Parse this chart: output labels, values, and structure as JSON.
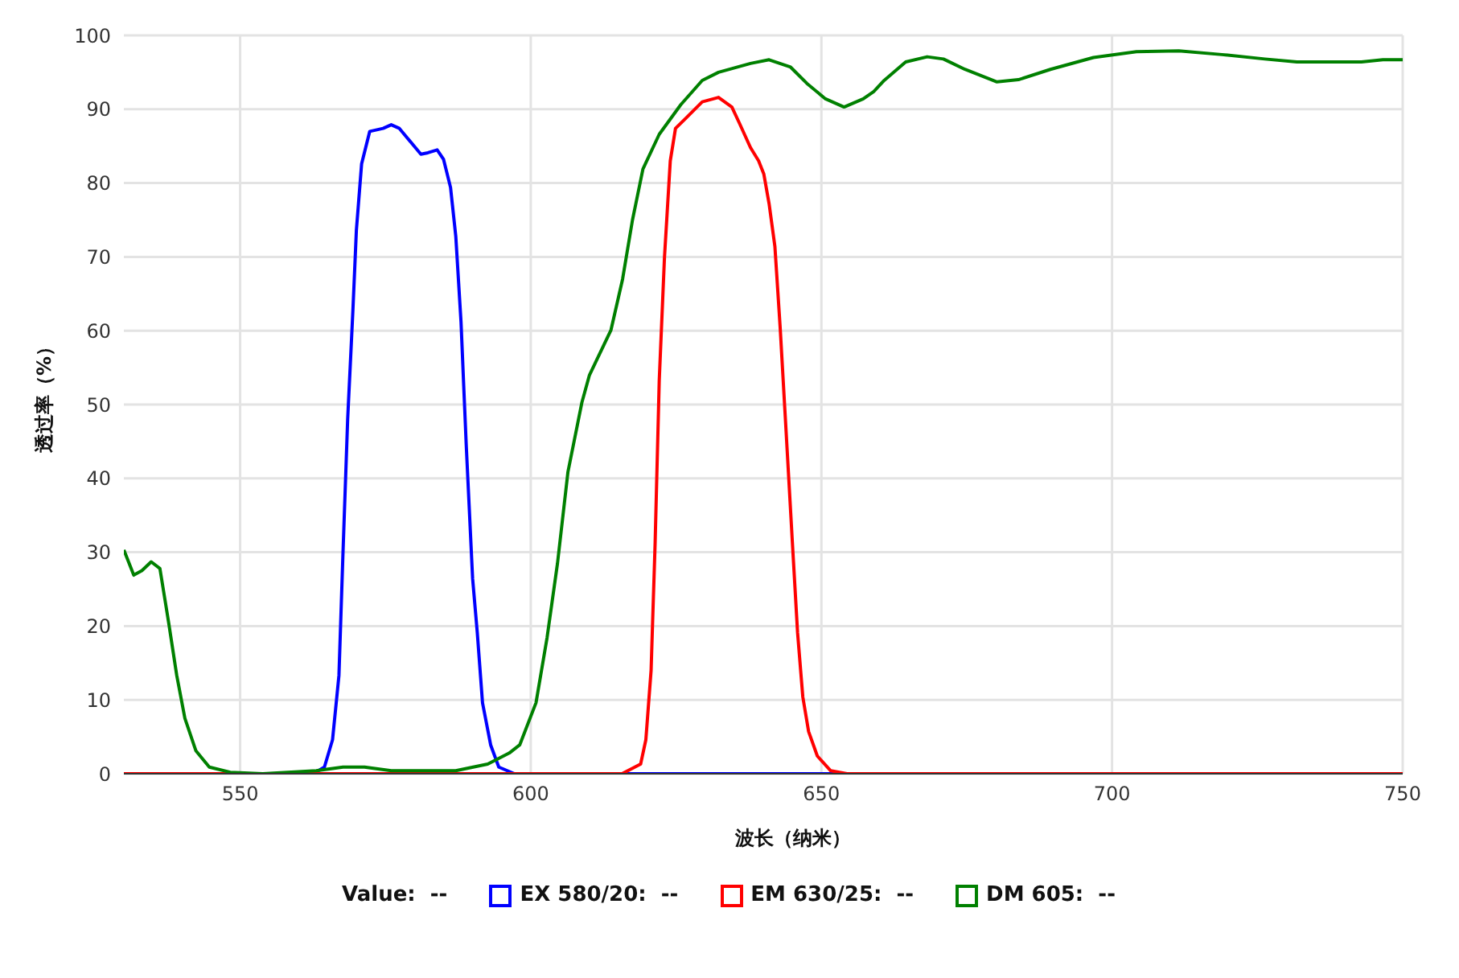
{
  "chart_data": {
    "type": "line",
    "xlabel": "波长（纳米）",
    "ylabel": "透过率（%）",
    "xlim": [
      530,
      750
    ],
    "xticks": [
      550,
      600,
      650,
      700,
      750
    ],
    "ylim": [
      0,
      100
    ],
    "yticks": [
      0,
      10,
      20,
      30,
      40,
      50,
      60,
      70,
      80,
      90,
      100
    ],
    "grid": true,
    "legend": "bottom",
    "marker": "none",
    "line_style": "solid",
    "annotations": [
      "Value:  --"
    ],
    "series": [
      {
        "name": "EX 580/20:  --",
        "color": "#0000ff",
        "x": [
          530,
          555,
          562.6,
          564.5,
          565.9,
          567.0,
          567.7,
          568.5,
          569.4,
          570.0,
          570.9,
          572.3,
          574.6,
          576.0,
          577.4,
          581.1,
          582.3,
          583.9,
          585.0,
          586.2,
          587.1,
          588.0,
          588.9,
          590.0,
          590.8,
          591.7,
          593.1,
          594.5,
          597.2,
          750
        ],
        "values": [
          0,
          0,
          0,
          0.9,
          4.6,
          13.3,
          30,
          48,
          62.7,
          73.6,
          82.6,
          87.0,
          87.4,
          87.9,
          87.4,
          83.9,
          84.1,
          84.5,
          83.2,
          79.4,
          72.8,
          61.2,
          44.5,
          26.4,
          19.1,
          9.6,
          3.9,
          0.9,
          0,
          0
        ]
      },
      {
        "name": "EM 630/25:  --",
        "color": "#ff0000",
        "x": [
          530,
          615.7,
          618.9,
          619.8,
          620.7,
          621.4,
          622.1,
          623.0,
          624.0,
          624.9,
          626.7,
          629.5,
          632.3,
          634.6,
          635.9,
          637.8,
          639.2,
          640.1,
          641.0,
          642.0,
          642.9,
          643.8,
          645.0,
          645.9,
          646.8,
          647.8,
          649.3,
          651.6,
          654.4,
          750
        ],
        "values": [
          0,
          0,
          1.3,
          4.6,
          14.0,
          31.4,
          53.2,
          69.9,
          83.0,
          87.4,
          88.8,
          91.0,
          91.6,
          90.3,
          88.1,
          84.8,
          83.0,
          81.2,
          77.2,
          71.4,
          60.5,
          48.1,
          31.4,
          19.1,
          10.4,
          5.7,
          2.4,
          0.4,
          0,
          0
        ]
      },
      {
        "name": "DM 605:  --",
        "color": "#008000",
        "x": [
          530,
          531.7,
          533.1,
          534.7,
          536.2,
          537.7,
          539.1,
          540.5,
          542.4,
          544.7,
          548.3,
          553.9,
          563.1,
          567.7,
          571.4,
          576.0,
          587.1,
          592.6,
          596.3,
          598.1,
          600.9,
          602.8,
          604.6,
          606.4,
          608.8,
          610.1,
          613.8,
          615.8,
          617.5,
          619.3,
          622.1,
          625.8,
          629.5,
          632.3,
          637.8,
          641.0,
          644.7,
          647.5,
          650.7,
          653.9,
          657.2,
          659.0,
          660.8,
          664.5,
          668.2,
          671.0,
          674.7,
          680.2,
          683.9,
          689.4,
          696.8,
          704.2,
          711.5,
          718.9,
          726.3,
          731.8,
          742.9,
          746.6,
          750
        ],
        "values": [
          30.3,
          26.9,
          27.5,
          28.7,
          27.8,
          20.5,
          13.3,
          7.5,
          3.1,
          0.9,
          0.2,
          0,
          0.4,
          0.9,
          0.9,
          0.4,
          0.4,
          1.3,
          2.8,
          3.9,
          9.6,
          18.4,
          28.5,
          40.9,
          50.3,
          54.0,
          60.1,
          67.0,
          75.0,
          81.9,
          86.6,
          90.6,
          93.9,
          95.0,
          96.2,
          96.7,
          95.7,
          93.5,
          91.4,
          90.3,
          91.4,
          92.4,
          93.9,
          96.4,
          97.1,
          96.8,
          95.4,
          93.7,
          94.0,
          95.4,
          97.0,
          97.8,
          97.9,
          97.4,
          96.8,
          96.4,
          96.4,
          96.7,
          96.7
        ]
      }
    ]
  }
}
